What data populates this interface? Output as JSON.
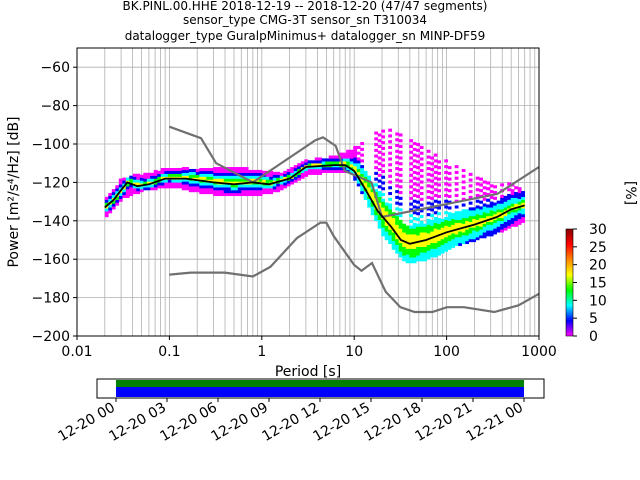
{
  "chart_data": {
    "type": "heatmap",
    "title_lines": [
      "BK.PINL.00.HHE   2018-12-19 -- 2018-12-20  (47/47 segments)",
      "sensor_type CMG-3T sensor_sn T310034",
      "datalogger_type GuralpMinimus+ datalogger_sn MINP-DF59"
    ],
    "xlabel": "Period [s]",
    "ylabel": "Power [m²/s⁴/Hz] [dB]",
    "x_scale": "log",
    "xlim": [
      0.01,
      1000
    ],
    "ylim": [
      -200,
      -50
    ],
    "x_ticks": [
      {
        "value": 0.01,
        "label": "0.01"
      },
      {
        "value": 0.1,
        "label": "0.1"
      },
      {
        "value": 1,
        "label": "1"
      },
      {
        "value": 10,
        "label": "10"
      },
      {
        "value": 100,
        "label": "100"
      },
      {
        "value": 1000,
        "label": "1000"
      }
    ],
    "y_ticks": [
      {
        "value": -60,
        "label": "−60"
      },
      {
        "value": -80,
        "label": "−80"
      },
      {
        "value": -100,
        "label": "−100"
      },
      {
        "value": -120,
        "label": "−120"
      },
      {
        "value": -140,
        "label": "−140"
      },
      {
        "value": -160,
        "label": "−160"
      },
      {
        "value": -180,
        "label": "−180"
      },
      {
        "value": -200,
        "label": "−200"
      }
    ],
    "grid": true,
    "colorbar": {
      "label": "[%]",
      "range": [
        0,
        30
      ],
      "ticks": [
        {
          "value": 0,
          "label": "0"
        },
        {
          "value": 5,
          "label": "5"
        },
        {
          "value": 10,
          "label": "10"
        },
        {
          "value": 15,
          "label": "15"
        },
        {
          "value": 20,
          "label": "20"
        },
        {
          "value": 25,
          "label": "25"
        },
        {
          "value": 30,
          "label": "30"
        }
      ],
      "colors": [
        "#ffffff",
        "#ff00ff",
        "#0000ff",
        "#00ffff",
        "#00ff00",
        "#ffff00",
        "#ff8800",
        "#ff0000",
        "#880000"
      ]
    },
    "noise_models": {
      "color": "#707070",
      "high": [
        [
          0.1,
          -91
        ],
        [
          0.22,
          -97
        ],
        [
          0.32,
          -110
        ],
        [
          0.8,
          -120
        ],
        [
          3.8,
          -98
        ],
        [
          4.6,
          -96.5
        ],
        [
          6.3,
          -101
        ],
        [
          7.9,
          -114
        ],
        [
          15.4,
          -120
        ],
        [
          20,
          -138
        ],
        [
          354.8,
          -126
        ],
        [
          1000,
          -112
        ]
      ],
      "low": [
        [
          0.1,
          -168
        ],
        [
          0.17,
          -167
        ],
        [
          0.4,
          -167
        ],
        [
          0.8,
          -169
        ],
        [
          1.24,
          -164
        ],
        [
          2.4,
          -149
        ],
        [
          4.3,
          -141
        ],
        [
          5,
          -141
        ],
        [
          6,
          -148
        ],
        [
          10,
          -163
        ],
        [
          12,
          -166
        ],
        [
          15.6,
          -162
        ],
        [
          21.9,
          -177
        ],
        [
          31.6,
          -185
        ],
        [
          45,
          -187.5
        ],
        [
          70,
          -187.5
        ],
        [
          101,
          -185
        ],
        [
          154,
          -185
        ],
        [
          328,
          -187.5
        ],
        [
          600,
          -184
        ],
        [
          1000,
          -178
        ]
      ]
    },
    "median": {
      "color": "#000000",
      "points": [
        [
          0.02,
          -133
        ],
        [
          0.025,
          -129
        ],
        [
          0.03,
          -124
        ],
        [
          0.035,
          -120
        ],
        [
          0.045,
          -122
        ],
        [
          0.06,
          -121
        ],
        [
          0.09,
          -118
        ],
        [
          0.15,
          -118
        ],
        [
          0.3,
          -120
        ],
        [
          0.5,
          -121
        ],
        [
          0.8,
          -120
        ],
        [
          1.2,
          -121
        ],
        [
          2,
          -118
        ],
        [
          3,
          -112
        ],
        [
          6,
          -111
        ],
        [
          8,
          -111
        ],
        [
          10,
          -114
        ],
        [
          13,
          -123
        ],
        [
          18,
          -135
        ],
        [
          25,
          -143
        ],
        [
          32,
          -150
        ],
        [
          40,
          -152
        ],
        [
          60,
          -150
        ],
        [
          100,
          -146
        ],
        [
          200,
          -142
        ],
        [
          350,
          -138
        ],
        [
          500,
          -134
        ],
        [
          700,
          -132
        ]
      ]
    },
    "envelope": {
      "lower": [
        [
          0.02,
          -138
        ],
        [
          0.03,
          -128
        ],
        [
          0.05,
          -124
        ],
        [
          0.1,
          -122
        ],
        [
          0.2,
          -125
        ],
        [
          0.4,
          -127
        ],
        [
          0.8,
          -127
        ],
        [
          1.5,
          -124
        ],
        [
          3,
          -116
        ],
        [
          6,
          -114
        ],
        [
          9,
          -115
        ],
        [
          13,
          -130
        ],
        [
          20,
          -148
        ],
        [
          35,
          -162
        ],
        [
          60,
          -160
        ],
        [
          120,
          -153
        ],
        [
          300,
          -147
        ],
        [
          700,
          -140
        ]
      ],
      "upper": [
        [
          0.02,
          -128
        ],
        [
          0.03,
          -118
        ],
        [
          0.05,
          -116
        ],
        [
          0.1,
          -113
        ],
        [
          0.2,
          -113
        ],
        [
          0.4,
          -112
        ],
        [
          0.8,
          -114
        ],
        [
          1.5,
          -116
        ],
        [
          3,
          -109
        ],
        [
          6,
          -107
        ],
        [
          9,
          -103
        ],
        [
          13,
          -97
        ],
        [
          20,
          -92
        ],
        [
          35,
          -96
        ],
        [
          60,
          -104
        ],
        [
          120,
          -112
        ],
        [
          300,
          -120
        ],
        [
          700,
          -122
        ]
      ]
    },
    "time_axis": {
      "labels": [
        "12-20 00",
        "12-20 03",
        "12-20 06",
        "12-20 09",
        "12-20 12",
        "12-20 15",
        "12-20 18",
        "12-20 21",
        "12-21 00"
      ],
      "coverage_colors": [
        "#008000",
        "#0000ff"
      ],
      "coverage_fraction": 1.0
    }
  }
}
